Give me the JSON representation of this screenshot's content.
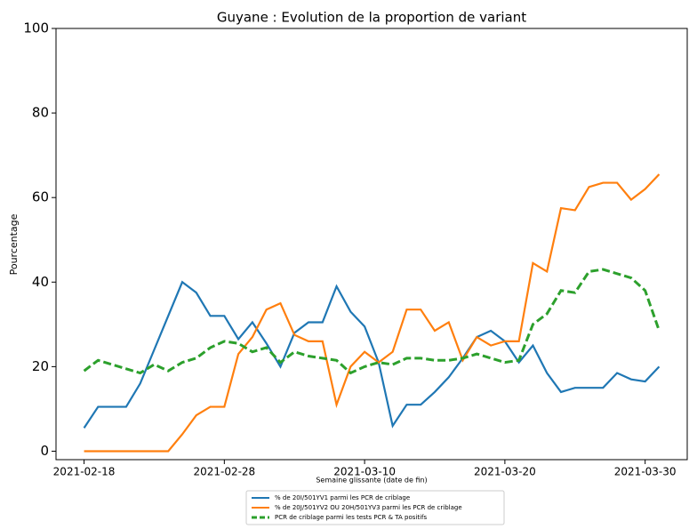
{
  "chart_data": {
    "type": "line",
    "title": "Guyane : Evolution de la proportion de variant",
    "ylabel": "Pourcentage",
    "xlabel": "Semaine glissante (date de fin)",
    "x": [
      "2021-02-18",
      "2021-02-19",
      "2021-02-20",
      "2021-02-21",
      "2021-02-22",
      "2021-02-23",
      "2021-02-24",
      "2021-02-25",
      "2021-02-26",
      "2021-02-27",
      "2021-02-28",
      "2021-03-01",
      "2021-03-02",
      "2021-03-03",
      "2021-03-04",
      "2021-03-05",
      "2021-03-06",
      "2021-03-07",
      "2021-03-08",
      "2021-03-09",
      "2021-03-10",
      "2021-03-11",
      "2021-03-12",
      "2021-03-13",
      "2021-03-14",
      "2021-03-15",
      "2021-03-16",
      "2021-03-17",
      "2021-03-18",
      "2021-03-19",
      "2021-03-20",
      "2021-03-21",
      "2021-03-22",
      "2021-03-23",
      "2021-03-24",
      "2021-03-25",
      "2021-03-26",
      "2021-03-27",
      "2021-03-28",
      "2021-03-29",
      "2021-03-30",
      "2021-03-31"
    ],
    "series": [
      {
        "name": "% de 20I/501YV1 parmi les PCR de criblage",
        "color": "#1f77b4",
        "style": "solid",
        "values": [
          5.5,
          10.5,
          10.5,
          10.5,
          16,
          24,
          32,
          40,
          37.5,
          32,
          32,
          26.5,
          30.5,
          25.5,
          20,
          28,
          30.5,
          30.5,
          39,
          33,
          29.5,
          21,
          6,
          11,
          11,
          14,
          17.5,
          22,
          27,
          28.5,
          26,
          21,
          25,
          18.5,
          14,
          15,
          15,
          15,
          18.5,
          17,
          16.5,
          20
        ]
      },
      {
        "name": "% de 20J/501YV2 OU 20H/501YV3 parmi les PCR de criblage",
        "color": "#ff7f0e",
        "style": "solid",
        "values": [
          0,
          0,
          0,
          0,
          0,
          0,
          0,
          4,
          8.5,
          10.5,
          10.5,
          23,
          27,
          33.5,
          35,
          27.5,
          26,
          26,
          11,
          20,
          23.5,
          21,
          23.5,
          33.5,
          33.5,
          28.5,
          30.5,
          21.5,
          27,
          25,
          26,
          26,
          44.5,
          42.5,
          57.5,
          57,
          62.5,
          63.5,
          63.5,
          59.5,
          62,
          65.5
        ]
      },
      {
        "name": "PCR de criblage parmi les tests PCR & TA positifs",
        "color": "#2ca02c",
        "style": "dashed",
        "values": [
          19,
          21.5,
          20.5,
          19.5,
          18.5,
          20.5,
          19,
          21,
          22,
          24.5,
          26,
          25.5,
          23.5,
          24.5,
          21,
          23.5,
          22.5,
          22,
          21.5,
          18.5,
          20,
          21,
          20.5,
          22,
          22,
          21.5,
          21.5,
          22,
          23,
          22,
          21,
          21.5,
          30,
          32.5,
          38,
          37.5,
          42.5,
          43,
          42,
          41,
          38,
          28.5
        ]
      }
    ],
    "xlim": [
      "2021-02-16",
      "2021-04-02"
    ],
    "xticks": [
      "2021-02-18",
      "2021-02-28",
      "2021-03-10",
      "2021-03-20",
      "2021-03-30"
    ],
    "ylim": [
      -2,
      100
    ],
    "yticks": [
      0,
      20,
      40,
      60,
      80,
      100
    ],
    "legend": "bottom"
  }
}
